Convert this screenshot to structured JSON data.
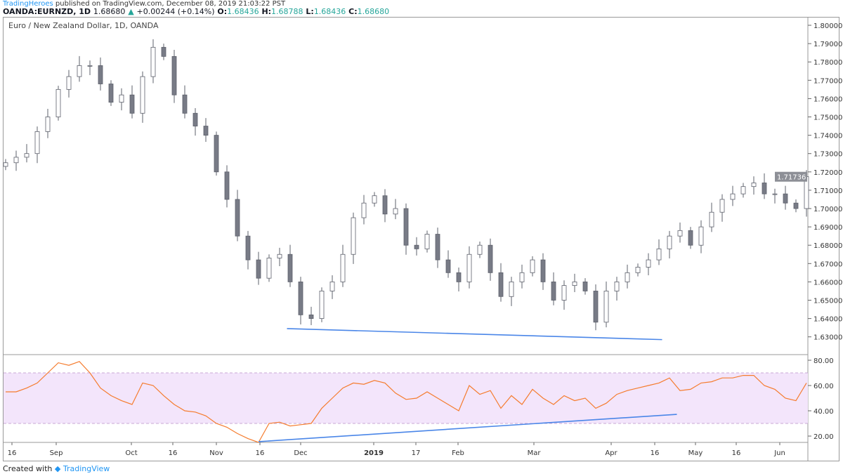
{
  "header": {
    "publisher": "TradingHeroes",
    "published_text": "published on TradingView.com, December 08, 2019 21:03:22 PST",
    "symbol": "OANDA:EURNZD, 1D",
    "last": "1.68680",
    "arrow": "▲",
    "change": "+0.00244 (+0.14%)",
    "o_label": "O:",
    "o": "1.68436",
    "h_label": "H:",
    "h": "1.68788",
    "l_label": "L:",
    "l": "1.68436",
    "c_label": "C:",
    "c": "1.68680"
  },
  "chart_title": "Euro / New Zealand Dollar, 1D, OANDA",
  "footer": {
    "created": "Created with",
    "brand": "TradingView"
  },
  "colors": {
    "bull": "#ffffff",
    "bear": "#787b86",
    "border": "#5d606b",
    "rsi": "#f57c2e",
    "band": "#f3e5fb",
    "trend": "#4a86e8"
  },
  "chart_data": [
    {
      "type": "candlestick",
      "ylim": [
        1.625,
        1.805
      ],
      "price_ticks": [
        "1.80000",
        "1.79000",
        "1.78000",
        "1.77000",
        "1.76000",
        "1.75000",
        "1.74000",
        "1.73000",
        "1.72000",
        "1.71000",
        "1.70000",
        "1.69000",
        "1.68000",
        "1.67000",
        "1.66000",
        "1.65000",
        "1.64000",
        "1.63000"
      ],
      "last_price_label": "1.71736",
      "closes": [
        1.725,
        1.728,
        1.73,
        1.742,
        1.75,
        1.765,
        1.772,
        1.778,
        1.778,
        1.768,
        1.758,
        1.762,
        1.752,
        1.772,
        1.788,
        1.783,
        1.762,
        1.752,
        1.745,
        1.74,
        1.72,
        1.705,
        1.685,
        1.672,
        1.662,
        1.673,
        1.675,
        1.66,
        1.642,
        1.64,
        1.655,
        1.66,
        1.675,
        1.695,
        1.703,
        1.707,
        1.697,
        1.7,
        1.68,
        1.678,
        1.686,
        1.672,
        1.665,
        1.66,
        1.675,
        1.68,
        1.665,
        1.652,
        1.66,
        1.665,
        1.672,
        1.66,
        1.65,
        1.658,
        1.66,
        1.655,
        1.638,
        1.655,
        1.66,
        1.665,
        1.668,
        1.672,
        1.678,
        1.685,
        1.688,
        1.68,
        1.69,
        1.698,
        1.705,
        1.708,
        1.712,
        1.714,
        1.708,
        1.708,
        1.703,
        1.7,
        1.7174
      ],
      "trendline": {
        "from": [
          26.7,
          1.6345
        ],
        "to": [
          62.3,
          1.6285
        ]
      }
    },
    {
      "type": "line",
      "name": "RSI",
      "ylim": [
        15,
        82
      ],
      "ticks": [
        "80.00",
        "60.00",
        "40.00",
        "20.00"
      ],
      "band": [
        30,
        70
      ],
      "values": [
        55,
        55,
        58,
        62,
        70,
        78,
        76,
        79,
        70,
        58,
        52,
        48,
        45,
        62,
        60,
        52,
        45,
        40,
        39,
        36,
        30,
        27,
        22,
        18,
        15,
        30,
        31,
        28,
        29,
        30,
        42,
        50,
        58,
        62,
        61,
        64,
        62,
        54,
        49,
        50,
        55,
        50,
        45,
        40,
        60,
        53,
        56,
        42,
        52,
        45,
        57,
        50,
        45,
        52,
        48,
        50,
        42,
        46,
        53,
        56,
        58,
        60,
        62,
        66,
        56,
        57,
        62,
        63,
        66,
        66,
        68,
        68,
        60,
        57,
        50,
        48,
        62
      ],
      "trendline": {
        "from": [
          24,
          15.6
        ],
        "to": [
          63.7,
          37.2
        ]
      }
    }
  ],
  "time_axis": [
    "16",
    "Sep",
    "Oct",
    "16",
    "Nov",
    "16",
    "Dec",
    "2019",
    "17",
    "Feb",
    "Mar",
    "Apr",
    "16",
    "May",
    "16",
    "Jun"
  ]
}
